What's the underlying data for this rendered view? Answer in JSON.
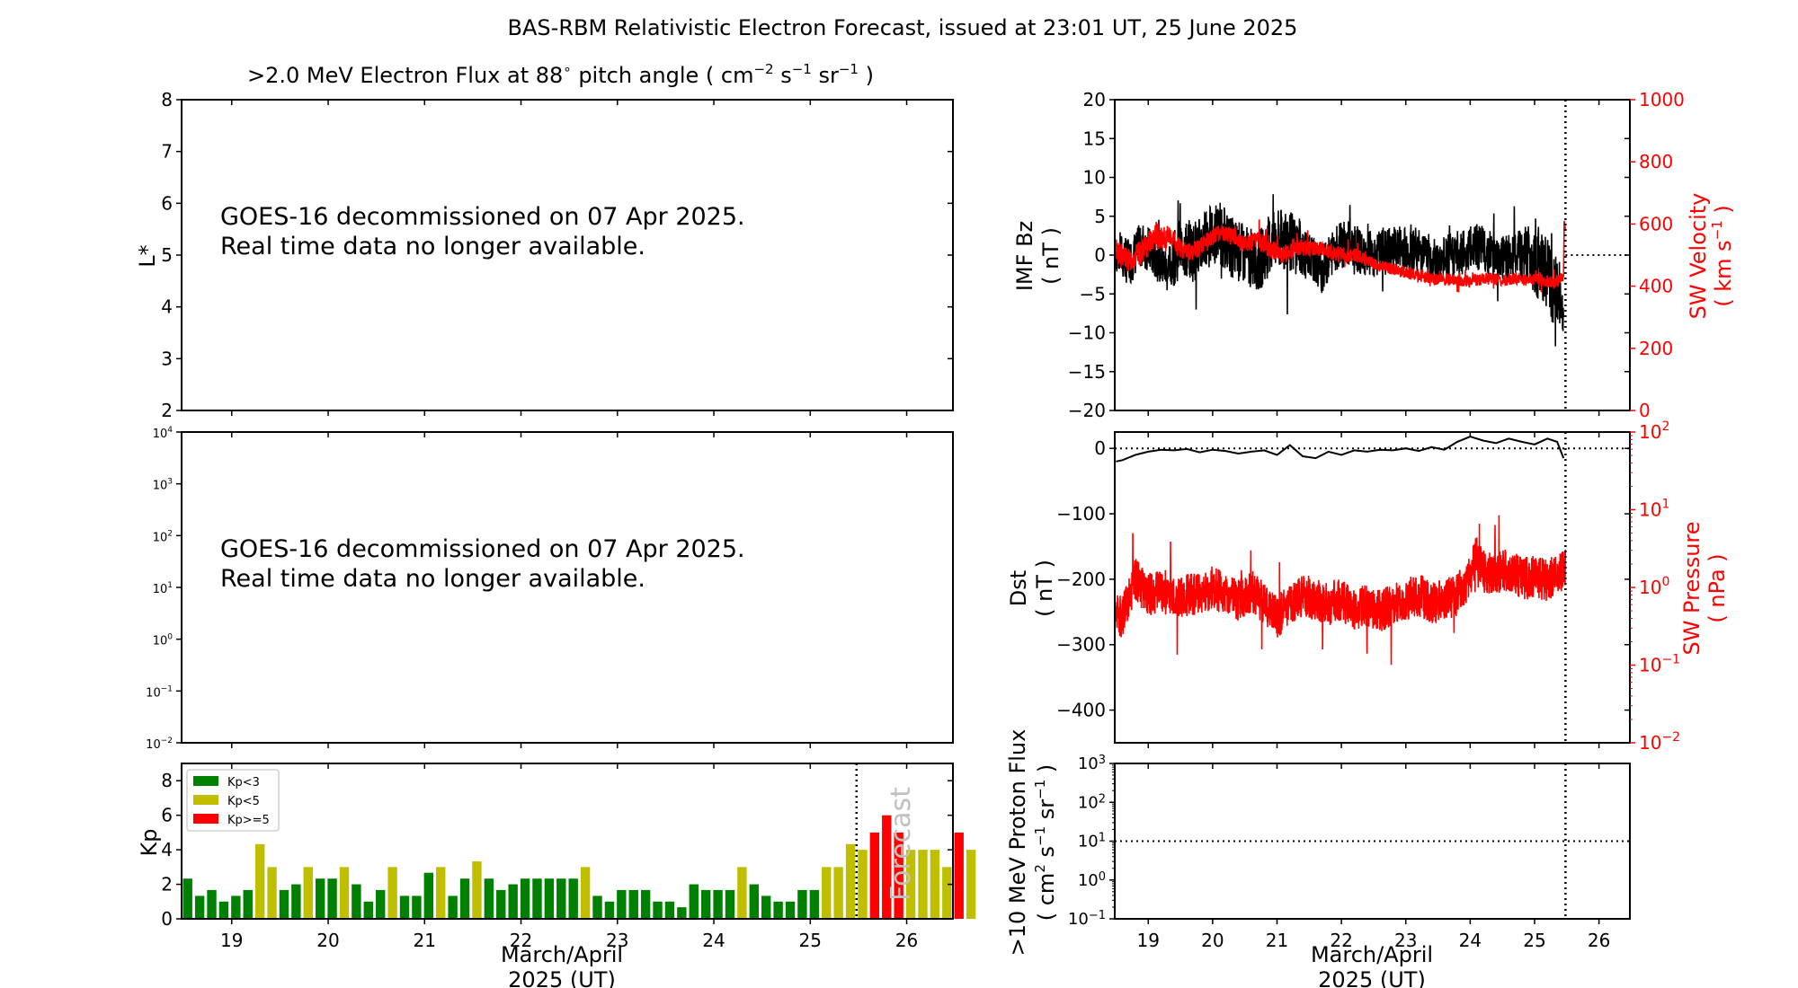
{
  "title": "BAS-RBM Relativistic Electron Forecast, issued at 23:01 UT, 25 June 2025",
  "flux_panel": {
    "title_pre": ">2.0 MeV Electron Flux at 88",
    "title_deg": "∘",
    "title_mid": " pitch angle ( cm",
    "title_e1": "−2",
    "title_s": " s",
    "title_e2": "−1",
    "title_sr": " sr",
    "title_e3": "−1",
    "title_post": " )",
    "ylabel": "L*",
    "yticks": [
      "2",
      "3",
      "4",
      "5",
      "6",
      "7",
      "8"
    ],
    "message_line1": "GOES-16 decommissioned on 07 Apr 2025.",
    "message_line2": "Real time data no longer available."
  },
  "goes_panel": {
    "yticks": [
      {
        "base": "10",
        "exp": "−2"
      },
      {
        "base": "10",
        "exp": "−1"
      },
      {
        "base": "10",
        "exp": "0"
      },
      {
        "base": "10",
        "exp": "1"
      },
      {
        "base": "10",
        "exp": "2"
      },
      {
        "base": "10",
        "exp": "3"
      },
      {
        "base": "10",
        "exp": "4"
      }
    ],
    "message_line1": "GOES-16 decommissioned on 07 Apr 2025.",
    "message_line2": "Real time data no longer available."
  },
  "kp_panel": {
    "ylabel": "Kp",
    "yticks": [
      "0",
      "2",
      "4",
      "6",
      "8"
    ],
    "legend": [
      {
        "label": "Kp<3",
        "color": "#008000"
      },
      {
        "label": "Kp<5",
        "color": "#bfbf00"
      },
      {
        "label": "Kp>=5",
        "color": "#ff0000"
      }
    ],
    "forecast_label": "Forecast",
    "xlabel_line1": "March/April",
    "xlabel_line2": "2025 (UT)"
  },
  "imf_panel": {
    "ylabel_line1": "IMF Bz",
    "ylabel_line2": "( nT )",
    "yticks": [
      "−20",
      "−15",
      "−10",
      "−5",
      "0",
      "5",
      "10",
      "15",
      "20"
    ],
    "ylabel_right_line1": "SW Velocity",
    "ylabel_right_line2_pre": "( km s",
    "ylabel_right_exp": "−1",
    "ylabel_right_line2_post": " )",
    "yticks_right": [
      "0",
      "200",
      "400",
      "600",
      "800",
      "1000"
    ]
  },
  "dst_panel": {
    "ylabel_line1": "Dst",
    "ylabel_line2": "( nT )",
    "yticks": [
      "−400",
      "−300",
      "−200",
      "−100",
      "0"
    ],
    "ylabel_right_line1": "SW Pressure",
    "ylabel_right_line2": "( nPa )",
    "yticks_right": [
      {
        "base": "10",
        "exp": "−2"
      },
      {
        "base": "10",
        "exp": "−1"
      },
      {
        "base": "10",
        "exp": "0"
      },
      {
        "base": "10",
        "exp": "1"
      },
      {
        "base": "10",
        "exp": "2"
      }
    ]
  },
  "proton_panel": {
    "ylabel_line1": ">10 MeV Proton Flux",
    "ylabel_line2_pre": "( cm",
    "ylabel_e1": "2",
    "ylabel_s": " s",
    "ylabel_e2": "−1",
    "ylabel_sr": " sr",
    "ylabel_e3": "−1",
    "ylabel_line2_post": " )",
    "yticks": [
      {
        "base": "10",
        "exp": "−1"
      },
      {
        "base": "10",
        "exp": "0"
      },
      {
        "base": "10",
        "exp": "1"
      },
      {
        "base": "10",
        "exp": "2"
      },
      {
        "base": "10",
        "exp": "3"
      }
    ],
    "xlabel_line1": "March/April",
    "xlabel_line2": "2025 (UT)"
  },
  "chart_data": [
    {
      "type": "bar",
      "name": "kp",
      "x_range": [
        18.48,
        26.48
      ],
      "ylim": [
        0,
        9
      ],
      "x_ticks": [
        19,
        20,
        21,
        22,
        23,
        24,
        25,
        26
      ],
      "forecast_start": 25.48,
      "bin_hours": 3,
      "first_bin_start": 18.48,
      "values": [
        2.33,
        1.33,
        1.67,
        1.0,
        1.33,
        1.67,
        4.33,
        3.0,
        1.67,
        2.0,
        3.0,
        2.33,
        2.33,
        3.0,
        2.0,
        1.0,
        1.67,
        3.0,
        1.33,
        1.33,
        2.67,
        3.0,
        1.33,
        2.33,
        3.33,
        2.33,
        1.67,
        2.0,
        2.33,
        2.33,
        2.33,
        2.33,
        2.33,
        3.0,
        1.33,
        1.0,
        1.67,
        1.67,
        1.67,
        1.0,
        1.0,
        0.67,
        2.0,
        1.67,
        1.67,
        1.67,
        3.0,
        2.0,
        1.33,
        1.0,
        1.0,
        1.67,
        1.67,
        3.0,
        3.0,
        4.33,
        4.0,
        5.0,
        6.0,
        5.0,
        4.0,
        4.0,
        4.0,
        3.0,
        5.0,
        4.0
      ]
    },
    {
      "type": "line",
      "name": "imf_bz_and_sw_velocity",
      "x_range": [
        18.48,
        26.48
      ],
      "x_ticks": [
        19,
        20,
        21,
        22,
        23,
        24,
        25,
        26
      ],
      "now": 25.48,
      "bz_ylim": [
        -20,
        20
      ],
      "velocity_ylim": [
        0,
        1000
      ],
      "bz_reference_line": 0,
      "bz_series": {
        "x": [
          18.5,
          18.7,
          18.9,
          19.1,
          19.3,
          19.5,
          19.7,
          19.9,
          20.1,
          20.3,
          20.5,
          20.7,
          20.9,
          21.1,
          21.3,
          21.5,
          21.7,
          21.9,
          22.1,
          22.3,
          22.5,
          22.7,
          22.9,
          23.1,
          23.3,
          23.5,
          23.7,
          23.9,
          24.1,
          24.3,
          24.5,
          24.7,
          24.9,
          25.1,
          25.3,
          25.45
        ],
        "y": [
          0.5,
          -1.0,
          1.5,
          0.0,
          -2.0,
          1.0,
          0.5,
          2.0,
          3.0,
          1.0,
          0.0,
          -1.0,
          1.5,
          2.0,
          1.5,
          0.0,
          -2.0,
          1.0,
          1.5,
          0.5,
          0.0,
          0.5,
          1.0,
          1.0,
          0.0,
          -1.0,
          0.0,
          0.5,
          1.0,
          0.5,
          -0.5,
          0.0,
          0.5,
          -1.5,
          -4.0,
          -8.0
        ],
        "spread": [
          3,
          3,
          3,
          3,
          3,
          4,
          4,
          4,
          4,
          4,
          4,
          4,
          4,
          4,
          4,
          3,
          3,
          3,
          3,
          3,
          3,
          3,
          3,
          3,
          3,
          3,
          3,
          3,
          3,
          3,
          3,
          3,
          4,
          5,
          5,
          3
        ]
      },
      "velocity_series": {
        "x": [
          18.5,
          18.7,
          18.9,
          19.1,
          19.3,
          19.5,
          19.7,
          19.9,
          20.1,
          20.3,
          20.5,
          20.7,
          20.9,
          21.1,
          21.3,
          21.5,
          21.7,
          21.9,
          22.1,
          22.3,
          22.5,
          22.7,
          22.9,
          23.1,
          23.3,
          23.5,
          23.7,
          23.9,
          24.1,
          24.3,
          24.5,
          24.7,
          24.9,
          25.1,
          25.3,
          25.45,
          25.46,
          25.48
        ],
        "y": [
          520,
          480,
          510,
          560,
          560,
          520,
          510,
          540,
          575,
          560,
          535,
          550,
          520,
          500,
          530,
          520,
          520,
          505,
          500,
          495,
          470,
          460,
          450,
          440,
          430,
          420,
          420,
          415,
          420,
          425,
          420,
          425,
          420,
          420,
          410,
          430,
          610,
          580
        ],
        "spread": [
          40,
          40,
          40,
          40,
          40,
          30,
          30,
          30,
          30,
          30,
          30,
          30,
          30,
          30,
          30,
          25,
          25,
          25,
          25,
          25,
          20,
          20,
          20,
          20,
          20,
          20,
          20,
          20,
          20,
          20,
          20,
          20,
          20,
          20,
          20,
          20,
          0,
          0
        ]
      }
    },
    {
      "type": "line",
      "name": "dst_and_sw_pressure",
      "x_range": [
        18.48,
        26.48
      ],
      "x_ticks": [
        19,
        20,
        21,
        22,
        23,
        24,
        25,
        26
      ],
      "now": 25.48,
      "dst_ylim": [
        -450,
        25
      ],
      "pressure_ylim_log10": [
        -2,
        2
      ],
      "dst_reference_line": 0,
      "dst_series": {
        "x": [
          18.5,
          18.6,
          18.8,
          19.0,
          19.2,
          19.4,
          19.6,
          19.8,
          20.0,
          20.2,
          20.4,
          20.6,
          20.8,
          21.0,
          21.2,
          21.4,
          21.6,
          21.8,
          22.0,
          22.2,
          22.4,
          22.6,
          22.8,
          23.0,
          23.2,
          23.4,
          23.6,
          23.8,
          24.0,
          24.2,
          24.4,
          24.6,
          24.8,
          25.0,
          25.2,
          25.35,
          25.45
        ],
        "y": [
          -20,
          -18,
          -10,
          -5,
          -2,
          -3,
          -1,
          -6,
          -2,
          -4,
          -8,
          -5,
          -3,
          -10,
          5,
          -12,
          -15,
          -5,
          -10,
          -3,
          -5,
          -2,
          -3,
          0,
          -4,
          2,
          -2,
          10,
          18,
          12,
          8,
          15,
          10,
          6,
          15,
          10,
          -15
        ]
      },
      "pressure_series": {
        "x": [
          18.5,
          18.6,
          18.7,
          18.8,
          18.9,
          19.0,
          19.2,
          19.4,
          19.6,
          19.8,
          20.0,
          20.2,
          20.4,
          20.6,
          20.8,
          21.0,
          21.2,
          21.4,
          21.6,
          21.8,
          22.0,
          22.2,
          22.4,
          22.6,
          22.8,
          23.0,
          23.2,
          23.4,
          23.6,
          23.8,
          24.0,
          24.1,
          24.2,
          24.4,
          24.6,
          24.8,
          25.0,
          25.2,
          25.4,
          25.48
        ],
        "y": [
          0.5,
          0.4,
          0.7,
          1.3,
          1.0,
          0.8,
          0.9,
          0.7,
          0.8,
          0.8,
          1.0,
          0.8,
          0.7,
          0.9,
          0.6,
          0.4,
          0.6,
          0.8,
          0.7,
          0.6,
          0.7,
          0.5,
          0.6,
          0.5,
          0.6,
          0.7,
          0.8,
          0.6,
          0.7,
          0.8,
          1.3,
          2.5,
          1.6,
          1.5,
          1.7,
          1.3,
          1.4,
          1.2,
          1.6,
          1.9
        ]
      }
    },
    {
      "type": "line",
      "name": "proton_flux",
      "x_range": [
        18.48,
        26.48
      ],
      "x_ticks": [
        19,
        20,
        21,
        22,
        23,
        24,
        25,
        26
      ],
      "now": 25.48,
      "ylim_log10": [
        -1,
        3
      ],
      "reference_line": 10
    }
  ]
}
